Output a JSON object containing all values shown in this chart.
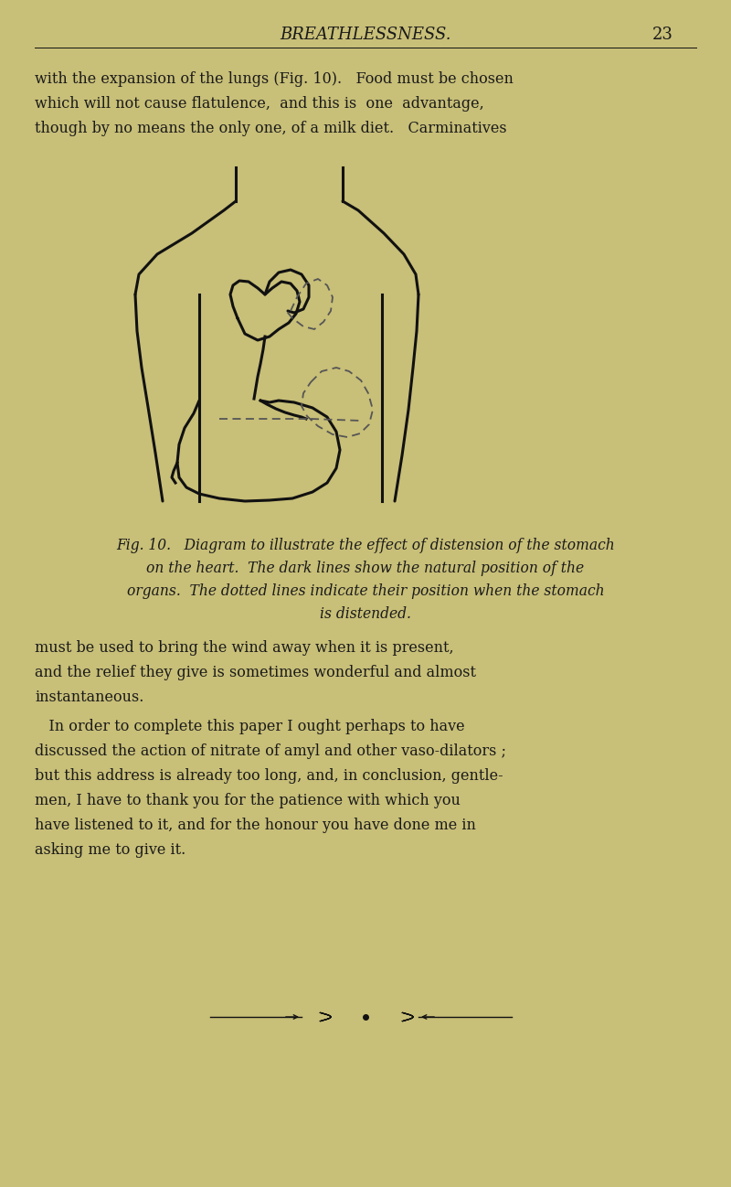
{
  "bg_color": "#c8bf78",
  "text_color": "#1a1a1a",
  "header_text": "BREATHLESSNESS.",
  "header_page": "23",
  "para1_lines": [
    "with the expansion of the lungs (Fig. 10).   Food must be chosen",
    "which will not cause flatulence,  and this is  one  advantage,",
    "though by no means the only one, of a milk diet.   Carminatives"
  ],
  "caption_lines": [
    "Fig. 10.   Diagram to illustrate the effect of distension of the stomach",
    "on the heart.  The dark lines show the natural position of the",
    "organs.  The dotted lines indicate their position when the stomach",
    "is distended."
  ],
  "para2_lines": [
    "must be used to bring the wind away when it is present,",
    "and the relief they give is sometimes wonderful and almost",
    "instantaneous."
  ],
  "para3_lines": [
    "   In order to complete this paper I ought perhaps to have",
    "discussed the action of nitrate of amyl and other vaso-dilators ;",
    "but this address is already too long, and, in conclusion, gentle-",
    "men, I have to thank you for the patience with which you",
    "have listened to it, and for the honour you have done me in",
    "asking me to give it."
  ],
  "line_color": "#111111",
  "dot_color": "#555555"
}
